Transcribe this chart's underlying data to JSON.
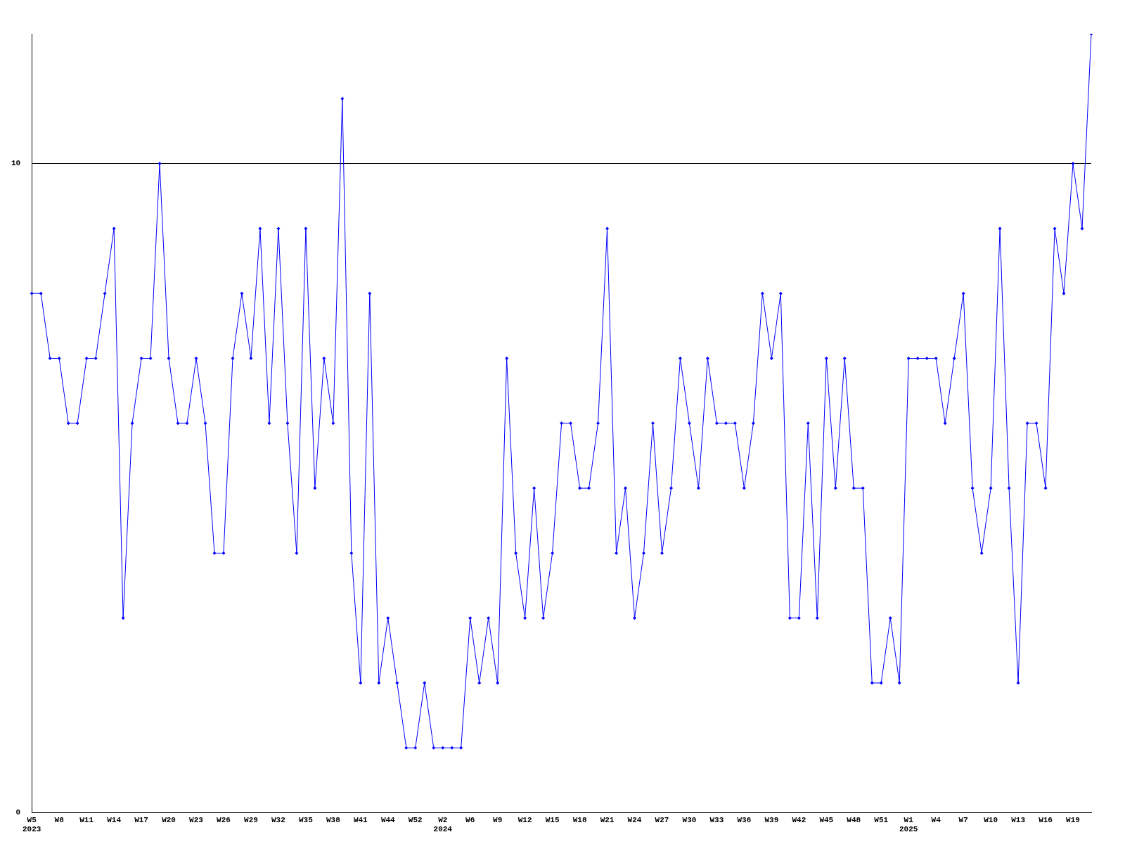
{
  "chart_data": {
    "type": "line",
    "categories": [
      "W5\n2023",
      null,
      null,
      "W8",
      null,
      null,
      "W11",
      null,
      null,
      "W14",
      null,
      null,
      "W17",
      null,
      null,
      "W20",
      null,
      null,
      "W23",
      null,
      null,
      "W26",
      null,
      null,
      "W29",
      null,
      null,
      "W32",
      null,
      null,
      "W35",
      null,
      null,
      "W38",
      null,
      null,
      "W41",
      null,
      null,
      "W44",
      null,
      null,
      "W52",
      null,
      null,
      "W2\n2024",
      null,
      null,
      "W6",
      null,
      null,
      "W9",
      null,
      null,
      "W12",
      null,
      null,
      "W15",
      null,
      null,
      "W18",
      null,
      null,
      "W21",
      null,
      null,
      "W24",
      null,
      null,
      "W27",
      null,
      null,
      "W30",
      null,
      null,
      "W33",
      null,
      null,
      "W36",
      null,
      null,
      "W39",
      null,
      null,
      "W42",
      null,
      null,
      "W45",
      null,
      null,
      "W48",
      null,
      null,
      "W51",
      null,
      null,
      "W1\n2025",
      null,
      null,
      "W4",
      null,
      null,
      "W7",
      null,
      null,
      "W10",
      null,
      null,
      "W13",
      null,
      null,
      "W16",
      null,
      null,
      "W19",
      null,
      null
    ],
    "series": [
      {
        "color": "#0000ff",
        "values": [
          8,
          8,
          7,
          7,
          6,
          6,
          7,
          7,
          8,
          9,
          3,
          6,
          7,
          7,
          10,
          7,
          6,
          6,
          7,
          6,
          4,
          4,
          7,
          8,
          7,
          9,
          6,
          9,
          6,
          4,
          9,
          5,
          7,
          6,
          11,
          4,
          2,
          8,
          2,
          3,
          2,
          1,
          1,
          2,
          1,
          1,
          1,
          1,
          3,
          2,
          3,
          2,
          7,
          4,
          3,
          5,
          3,
          4,
          6,
          6,
          5,
          5,
          6,
          9,
          4,
          5,
          3,
          4,
          6,
          4,
          5,
          7,
          6,
          5,
          7,
          6,
          6,
          6,
          5,
          6,
          8,
          7,
          8,
          3,
          3,
          6,
          3,
          7,
          5,
          7,
          5,
          5,
          2,
          2,
          3,
          2,
          7,
          7,
          7,
          7,
          6,
          7,
          8,
          5,
          4,
          5,
          9,
          5,
          2,
          6,
          6,
          5,
          9,
          8,
          10,
          9,
          12
        ]
      }
    ],
    "ylim": [
      0,
      12
    ],
    "yticks": [
      0,
      10
    ],
    "grid": "y",
    "legend": false,
    "marker": "diamond",
    "line_style": "solid"
  }
}
